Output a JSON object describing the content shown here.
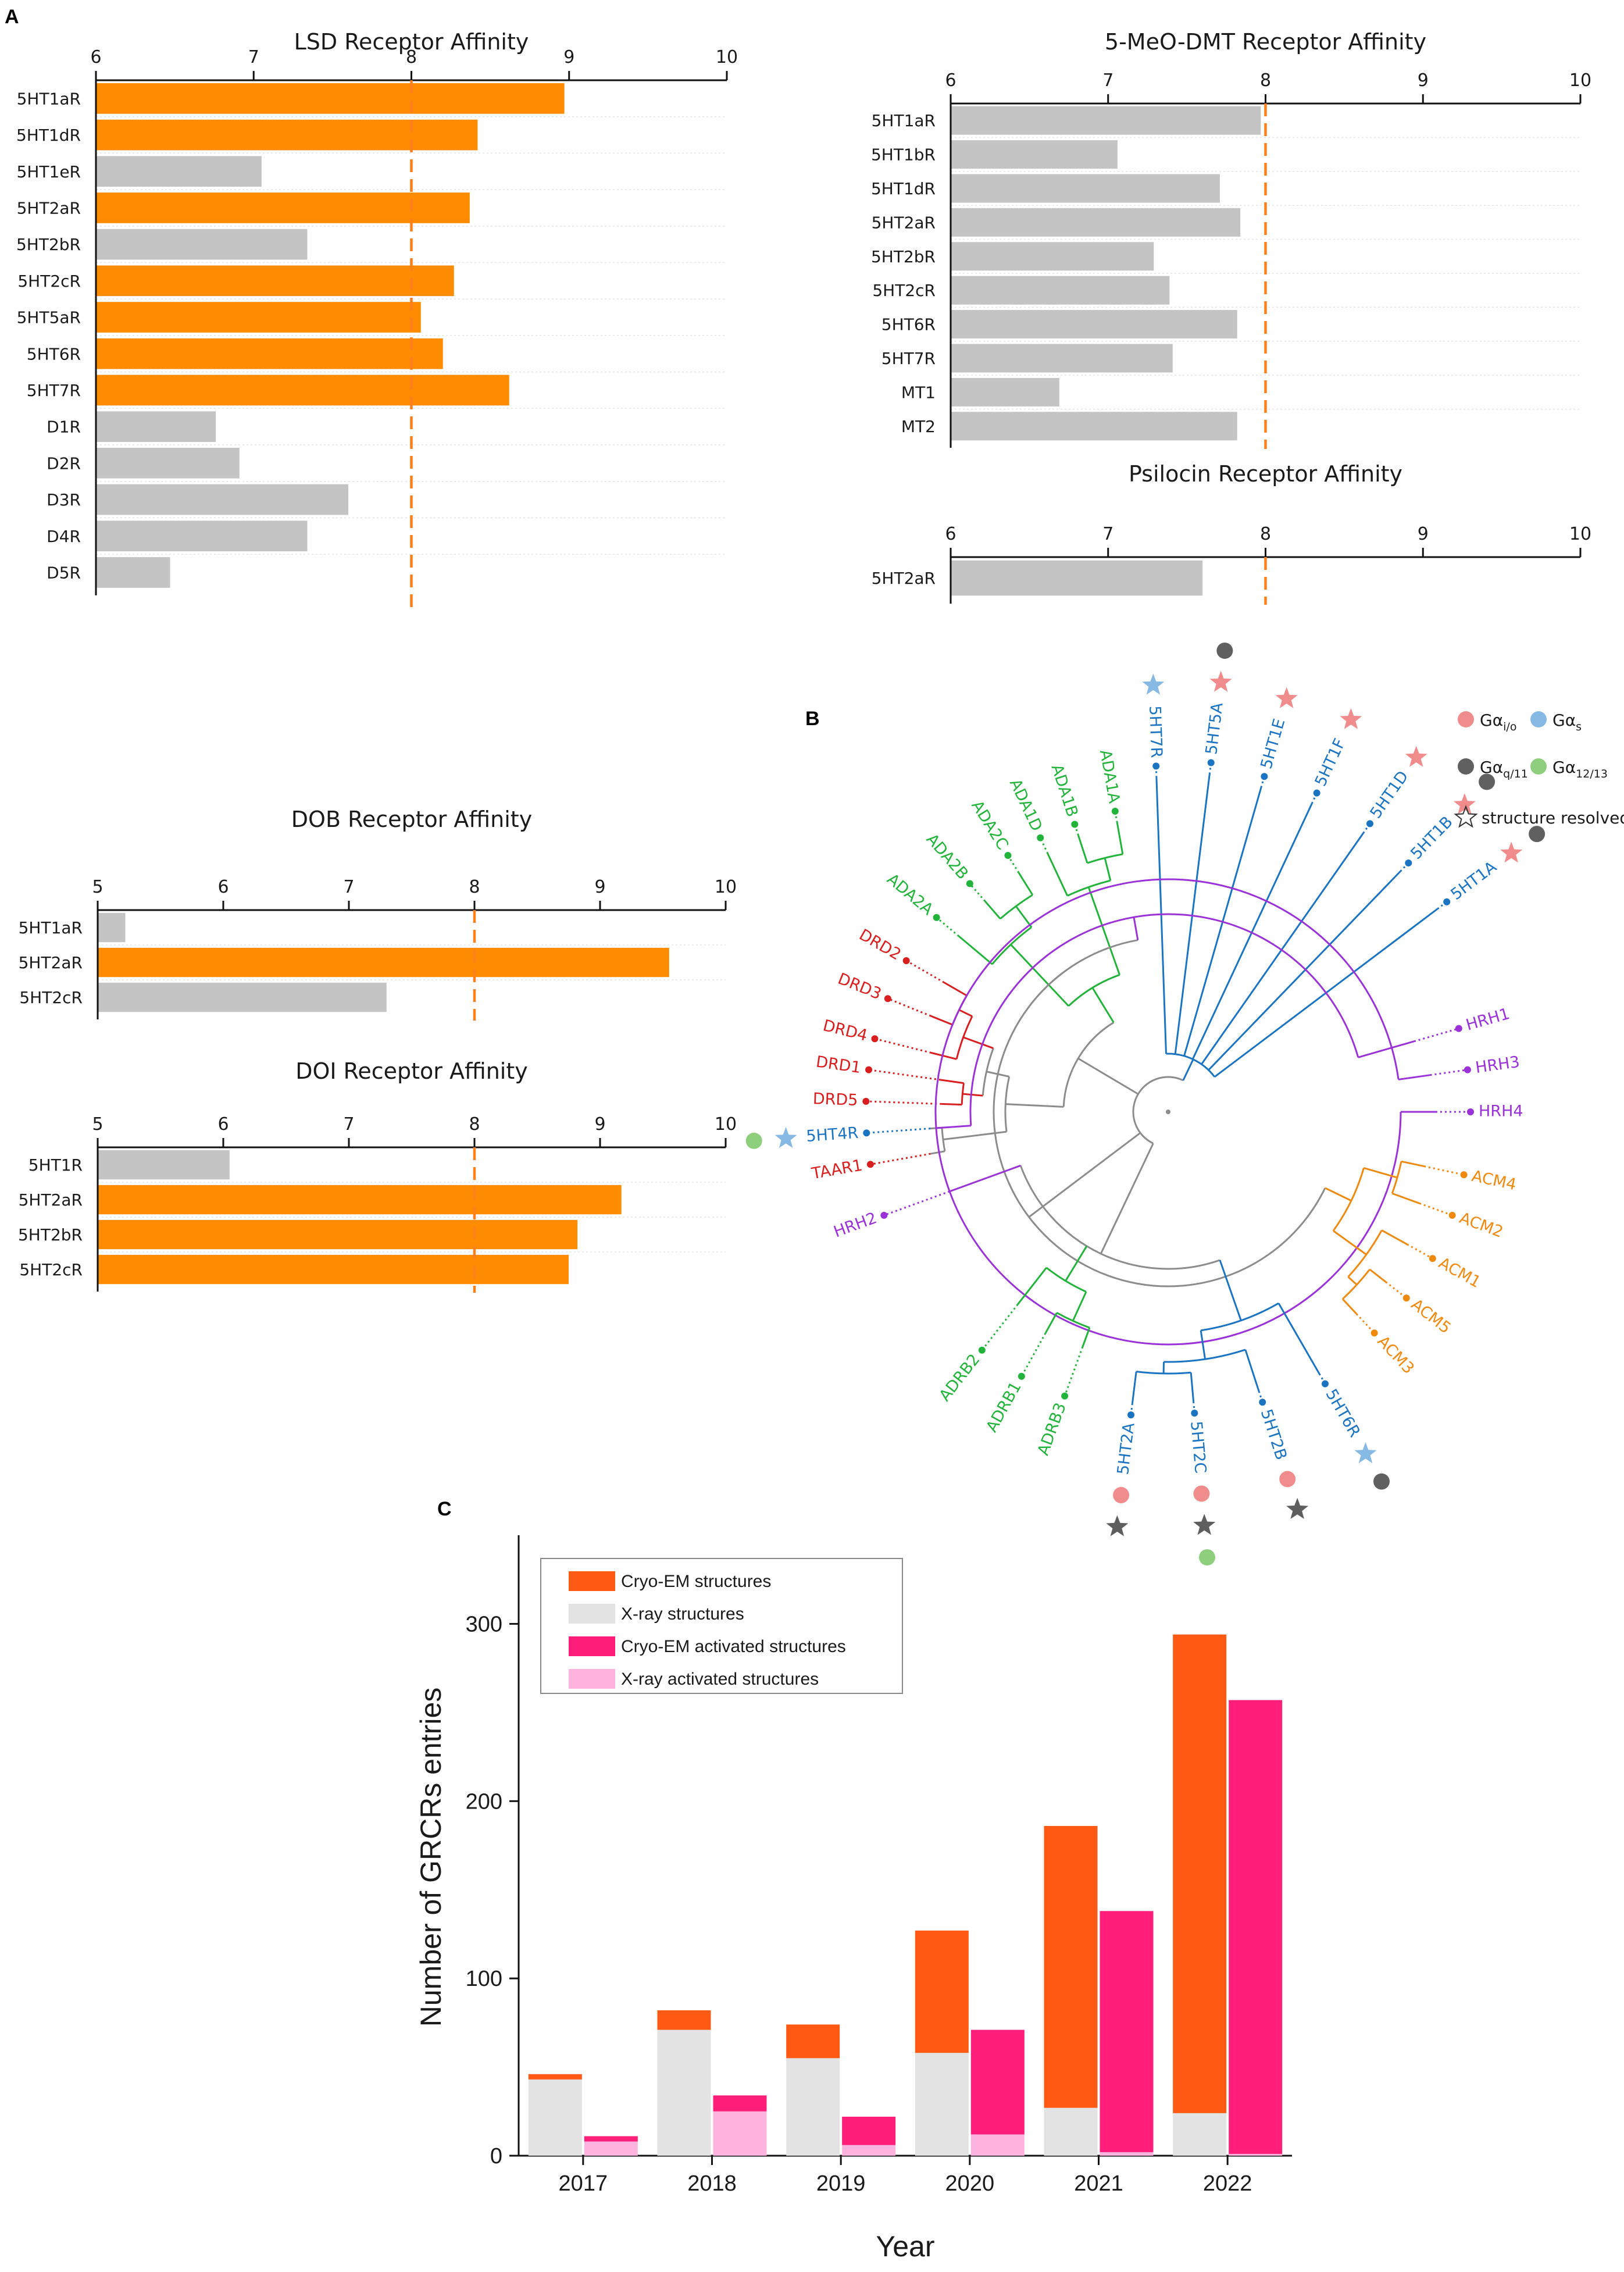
{
  "panel_letters": {
    "a": "A",
    "b": "B",
    "c": "C"
  },
  "colors": {
    "orange": "#ff8c00",
    "gray": "#c4c4c4",
    "refline": "#ff7f1a",
    "cryo_em": "#ff5a14",
    "xray": "#e3e3e3",
    "cryo_em_act": "#ff1f7a",
    "xray_act": "#ffb3de"
  },
  "chart_data": [
    {
      "id": "lsd",
      "type": "bar",
      "orientation": "horizontal",
      "title": "LSD Receptor Affinity",
      "xlim": [
        6,
        10
      ],
      "xticks": [
        "6",
        "7",
        "8",
        "9",
        "10"
      ],
      "reference_line": 8,
      "categories": [
        "5HT1aR",
        "5HT1dR",
        "5HT1eR",
        "5HT2aR",
        "5HT2bR",
        "5HT2cR",
        "5HT5aR",
        "5HT6R",
        "5HT7R",
        "D1R",
        "D2R",
        "D3R",
        "D4R",
        "D5R"
      ],
      "values": [
        8.97,
        8.42,
        7.05,
        8.37,
        7.34,
        8.27,
        8.06,
        8.2,
        8.62,
        6.76,
        6.91,
        7.6,
        7.34,
        6.47
      ],
      "highlight": [
        true,
        true,
        false,
        true,
        false,
        true,
        true,
        true,
        true,
        false,
        false,
        false,
        false,
        false
      ]
    },
    {
      "id": "dmt",
      "type": "bar",
      "orientation": "horizontal",
      "title": "5-MeO-DMT Receptor Affinity",
      "xlim": [
        6,
        10
      ],
      "xticks": [
        "6",
        "7",
        "8",
        "9",
        "10"
      ],
      "reference_line": 8,
      "categories": [
        "5HT1aR",
        "5HT1bR",
        "5HT1dR",
        "5HT2aR",
        "5HT2bR",
        "5HT2cR",
        "5HT6R",
        "5HT7R",
        "MT1",
        "MT2"
      ],
      "values": [
        7.97,
        7.06,
        7.71,
        7.84,
        7.29,
        7.39,
        7.82,
        7.41,
        6.69,
        7.82
      ],
      "highlight": [
        false,
        false,
        false,
        false,
        false,
        false,
        false,
        false,
        false,
        false
      ]
    },
    {
      "id": "psilocin",
      "type": "bar",
      "orientation": "horizontal",
      "title": "Psilocin Receptor Affinity",
      "xlim": [
        6,
        10
      ],
      "xticks": [
        "6",
        "7",
        "8",
        "9",
        "10"
      ],
      "reference_line": 8,
      "categories": [
        "5HT2aR"
      ],
      "values": [
        7.6
      ],
      "highlight": [
        false
      ]
    },
    {
      "id": "dob",
      "type": "bar",
      "orientation": "horizontal",
      "title": "DOB Receptor Affinity",
      "xlim": [
        5,
        10
      ],
      "xticks": [
        "5",
        "6",
        "7",
        "8",
        "9",
        "10"
      ],
      "reference_line": 8,
      "categories": [
        "5HT1aR",
        "5HT2aR",
        "5HT2cR"
      ],
      "values": [
        5.22,
        9.55,
        7.3
      ],
      "highlight": [
        false,
        true,
        false
      ]
    },
    {
      "id": "doi",
      "type": "bar",
      "orientation": "horizontal",
      "title": "DOI Receptor Affinity",
      "xlim": [
        5,
        10
      ],
      "xticks": [
        "5",
        "6",
        "7",
        "8",
        "9",
        "10"
      ],
      "reference_line": 8,
      "categories": [
        "5HT1R",
        "5HT2aR",
        "5HT2bR",
        "5HT2cR"
      ],
      "values": [
        6.05,
        9.17,
        8.82,
        8.75
      ],
      "highlight": [
        false,
        true,
        true,
        true
      ]
    },
    {
      "id": "grcrs",
      "type": "bar",
      "stacked": true,
      "xlabel": "Year",
      "ylabel": "Number of GRCRs entries",
      "categories": [
        "2017",
        "2018",
        "2019",
        "2020",
        "2021",
        "2022"
      ],
      "ylim": [
        0,
        350
      ],
      "yticks": [
        "0",
        "100",
        "200",
        "300"
      ],
      "groups": [
        {
          "name": "all structures",
          "series": [
            {
              "name": "X-ray structures",
              "values": [
                43,
                71,
                55,
                58,
                27,
                24
              ]
            },
            {
              "name": "Cryo-EM structures",
              "values": [
                3,
                11,
                19,
                69,
                159,
                270
              ]
            }
          ]
        },
        {
          "name": "activated structures",
          "series": [
            {
              "name": "X-ray activated structures",
              "values": [
                8,
                25,
                6,
                12,
                2,
                1
              ]
            },
            {
              "name": "Cryo-EM activated structures",
              "values": [
                3,
                9,
                16,
                59,
                136,
                256
              ]
            }
          ]
        }
      ],
      "legend": [
        "Cryo-EM structures",
        "X-ray structures",
        "Cryo-EM activated structures",
        "X-ray activated structures"
      ],
      "legend_position": "top-left"
    }
  ],
  "tree": {
    "legend": {
      "gi": {
        "base": "Gα",
        "sub": "i/o"
      },
      "gs": {
        "base": "Gα",
        "sub": "s"
      },
      "gq": {
        "base": "Gα",
        "sub": "q/11"
      },
      "g12": {
        "base": "Gα",
        "sub": "12/13"
      },
      "structure": "structure resolved"
    },
    "leaves": [
      {
        "label": "TAAR1",
        "family": "red"
      },
      {
        "label": "5HT4R",
        "family": "blue",
        "outer": [
          "gs-star",
          "g12-dot"
        ]
      },
      {
        "label": "DRD5",
        "family": "red"
      },
      {
        "label": "DRD1",
        "family": "red"
      },
      {
        "label": "DRD4",
        "family": "red"
      },
      {
        "label": "DRD3",
        "family": "red"
      },
      {
        "label": "DRD2",
        "family": "red"
      },
      {
        "label": "ADA2A",
        "family": "green"
      },
      {
        "label": "ADA2B",
        "family": "green"
      },
      {
        "label": "ADA2C",
        "family": "green"
      },
      {
        "label": "ADA1D",
        "family": "green"
      },
      {
        "label": "ADA1B",
        "family": "green"
      },
      {
        "label": "ADA1A",
        "family": "green"
      },
      {
        "label": "5HT7R",
        "family": "blue",
        "outer": [
          "gs-star"
        ]
      },
      {
        "label": "5HT5A",
        "family": "blue",
        "outer": [
          "gi-star",
          "gq-dot"
        ]
      },
      {
        "label": "5HT1E",
        "family": "blue",
        "outer": [
          "gi-star"
        ]
      },
      {
        "label": "5HT1F",
        "family": "blue",
        "outer": [
          "gi-star"
        ]
      },
      {
        "label": "5HT1D",
        "family": "blue",
        "outer": [
          "gi-star"
        ]
      },
      {
        "label": "5HT1B",
        "family": "blue",
        "outer": [
          "gi-star",
          "gq-dot"
        ]
      },
      {
        "label": "5HT1A",
        "family": "blue",
        "outer": [
          "gi-star",
          "gq-dot"
        ]
      },
      {
        "label": "HRH1",
        "family": "purple"
      },
      {
        "label": "HRH3",
        "family": "purple"
      },
      {
        "label": "HRH4",
        "family": "purple"
      },
      {
        "label": "ACM4",
        "family": "orange"
      },
      {
        "label": "ACM2",
        "family": "orange"
      },
      {
        "label": "ACM1",
        "family": "orange"
      },
      {
        "label": "ACM5",
        "family": "orange"
      },
      {
        "label": "ACM3",
        "family": "orange"
      },
      {
        "label": "5HT6R",
        "family": "blue",
        "outer": [
          "gs-star",
          "gq-dot"
        ]
      },
      {
        "label": "5HT2B",
        "family": "blue",
        "outer": [
          "gi-dot",
          "gq-star"
        ]
      },
      {
        "label": "5HT2C",
        "family": "blue",
        "outer": [
          "gi-dot",
          "gq-star",
          "g12-dot"
        ]
      },
      {
        "label": "5HT2A",
        "family": "blue",
        "outer": [
          "gi-dot",
          "gq-star"
        ]
      },
      {
        "label": "ADRB3",
        "family": "green"
      },
      {
        "label": "ADRB1",
        "family": "green"
      },
      {
        "label": "ADRB2",
        "family": "green"
      },
      {
        "label": "HRH2",
        "family": "purple"
      }
    ]
  }
}
